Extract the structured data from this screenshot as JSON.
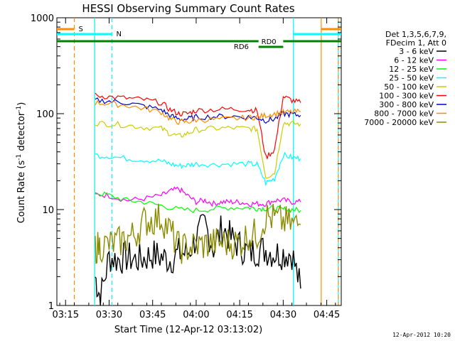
{
  "chart_data": {
    "type": "line",
    "title": "HESSI Observing Summary Count Rates",
    "xlabel": "Start Time (12-Apr-12 03:13:02)",
    "ylabel_main": "Count Rate (s",
    "ylabel_sup1": "-1",
    "ylabel_mid": " detector",
    "ylabel_sup2": "-1",
    "ylabel_end": ")",
    "y_scale": "log",
    "xlim_min": [
      3.2,
      4.8333
    ],
    "ylim": [
      1,
      1000
    ],
    "x_ticks": [
      {
        "value": 3.25,
        "label": "03:15"
      },
      {
        "value": 3.5,
        "label": "03:30"
      },
      {
        "value": 3.75,
        "label": "03:45"
      },
      {
        "value": 4.0,
        "label": "04:00"
      },
      {
        "value": 4.25,
        "label": "04:15"
      },
      {
        "value": 4.5,
        "label": "04:30"
      },
      {
        "value": 4.75,
        "label": "04:45"
      }
    ],
    "y_ticks": [
      {
        "value": 1,
        "label": "1"
      },
      {
        "value": 10,
        "label": "10"
      },
      {
        "value": 100,
        "label": "100"
      },
      {
        "value": 1000,
        "label": "1000"
      }
    ],
    "legend": {
      "placement": "right",
      "header": [
        "Det 1,3,5,6,7,9,",
        "FDecim 1, Att 0"
      ]
    },
    "flags": {
      "saa_label": "S",
      "night_label": "N",
      "rd6_label": "RD6",
      "rd0_label": "RD0"
    },
    "vertical_markers": [
      {
        "value": 3.4167,
        "color": "#ff8c00",
        "style": "solid"
      },
      {
        "value": 3.3,
        "color": "#ff8c00",
        "style": "dashed"
      },
      {
        "value": 3.4167,
        "color": "#00ffff",
        "style": "solid"
      },
      {
        "value": 3.5167,
        "color": "#00ffff",
        "style": "dashed"
      },
      {
        "value": 4.5583,
        "color": "#00ffff",
        "style": "solid"
      },
      {
        "value": 4.7183,
        "color": "#ff8c00",
        "style": "solid"
      },
      {
        "value": 4.8167,
        "color": "#00ffff",
        "style": "solid"
      },
      {
        "value": 4.8167,
        "color": "#ff8c00",
        "style": "dashed"
      }
    ],
    "series": [
      {
        "name": "3 - 6 keV",
        "color": "#000000",
        "x": [
          3.42,
          3.45,
          3.5,
          3.55,
          3.6,
          3.65,
          3.7,
          3.75,
          3.8,
          3.85,
          3.9,
          3.95,
          4.0,
          4.05,
          4.1,
          4.15,
          4.2,
          4.25,
          4.3,
          4.35,
          4.4,
          4.45,
          4.5,
          4.55,
          4.6
        ],
        "y": [
          2.0,
          1.2,
          3.2,
          3.0,
          3.2,
          3.0,
          3.1,
          3.4,
          3.2,
          3.0,
          3.5,
          3.5,
          5.0,
          7.0,
          4.0,
          6.5,
          5.0,
          4.2,
          3.5,
          3.8,
          3.8,
          3.5,
          3.5,
          3.5,
          1.5
        ]
      },
      {
        "name": "6 - 12 keV",
        "color": "#ff00ff",
        "x": [
          3.42,
          3.5,
          3.6,
          3.7,
          3.8,
          3.85,
          3.9,
          3.95,
          4.0,
          4.05,
          4.1,
          4.15,
          4.2,
          4.25,
          4.3,
          4.35,
          4.4,
          4.45,
          4.5,
          4.55,
          4.6
        ],
        "y": [
          14.5,
          14.0,
          12.5,
          13.0,
          14.0,
          15.5,
          16.5,
          14.0,
          12.0,
          12.5,
          11.5,
          12.0,
          12.0,
          12.0,
          11.5,
          11.5,
          11.5,
          12.5,
          12.5,
          12.0,
          12.0
        ]
      },
      {
        "name": "12 - 25 keV",
        "color": "#00ff00",
        "x": [
          3.42,
          3.5,
          3.6,
          3.7,
          3.8,
          3.9,
          4.0,
          4.1,
          4.2,
          4.3,
          4.35,
          4.4,
          4.45,
          4.5,
          4.55,
          4.6
        ],
        "y": [
          15.0,
          14.0,
          12.5,
          12.0,
          11.0,
          10.0,
          9.8,
          10.2,
          10.5,
          10.5,
          10.3,
          10.3,
          10.3,
          10.0,
          10.0,
          9.8
        ]
      },
      {
        "name": "25 - 50 keV",
        "color": "#00ffff",
        "x": [
          3.42,
          3.5,
          3.6,
          3.7,
          3.8,
          3.85,
          3.9,
          3.95,
          4.0,
          4.1,
          4.2,
          4.3,
          4.35,
          4.4,
          4.45,
          4.5,
          4.55,
          4.6
        ],
        "y": [
          37,
          36,
          34,
          33,
          32,
          30,
          28.5,
          29,
          30,
          29.5,
          30,
          30,
          29.5,
          19,
          21,
          37,
          35,
          34
        ]
      },
      {
        "name": "50 - 100 keV",
        "color": "#cccc00",
        "x": [
          3.42,
          3.5,
          3.6,
          3.7,
          3.8,
          3.85,
          3.9,
          3.95,
          4.0,
          4.1,
          4.2,
          4.3,
          4.35,
          4.4,
          4.45,
          4.5,
          4.55,
          4.6
        ],
        "y": [
          80,
          78,
          76,
          72,
          70,
          62,
          58,
          62,
          68,
          70,
          71,
          70,
          69,
          22,
          24,
          80,
          79,
          78
        ]
      },
      {
        "name": "100 - 300 keV",
        "color": "#ff0000",
        "x": [
          3.42,
          3.5,
          3.6,
          3.7,
          3.8,
          3.85,
          3.9,
          3.95,
          4.0,
          4.1,
          4.2,
          4.3,
          4.35,
          4.4,
          4.45,
          4.5,
          4.55,
          4.6
        ],
        "y": [
          155,
          150,
          145,
          140,
          130,
          110,
          100,
          100,
          108,
          110,
          112,
          110,
          108,
          35,
          42,
          150,
          138,
          130
        ]
      },
      {
        "name": "300 - 800 keV",
        "color": "#0000cc",
        "x": [
          3.42,
          3.5,
          3.6,
          3.7,
          3.8,
          3.85,
          3.9,
          3.95,
          4.0,
          4.1,
          4.2,
          4.3,
          4.35,
          4.4,
          4.45,
          4.5,
          4.55,
          4.6
        ],
        "y": [
          138,
          135,
          130,
          120,
          110,
          95,
          88,
          88,
          92,
          93,
          94,
          92,
          91,
          85,
          88,
          100,
          98,
          96
        ]
      },
      {
        "name": "800 - 7000 keV",
        "color": "#ff8c00",
        "x": [
          3.42,
          3.5,
          3.6,
          3.7,
          3.8,
          3.85,
          3.9,
          3.95,
          4.0,
          4.1,
          4.2,
          4.3,
          4.35,
          4.4,
          4.45,
          4.5,
          4.55,
          4.6
        ],
        "y": [
          130,
          127,
          122,
          113,
          104,
          88,
          82,
          82,
          86,
          87,
          88,
          91,
          92,
          96,
          100,
          103,
          104,
          105
        ]
      },
      {
        "name": "7000 - 20000 keV",
        "color": "#8b8b00",
        "x": [
          3.42,
          3.45,
          3.5,
          3.55,
          3.6,
          3.65,
          3.7,
          3.75,
          3.8,
          3.85,
          3.9,
          3.95,
          4.0,
          4.05,
          4.1,
          4.15,
          4.2,
          4.25,
          4.3,
          4.35,
          4.4,
          4.45,
          4.5,
          4.55,
          4.6
        ],
        "y": [
          4.0,
          4.2,
          4.3,
          4.5,
          5.0,
          5.5,
          7.5,
          7.8,
          8.2,
          6.0,
          4.0,
          4.0,
          4.2,
          4.3,
          4.5,
          4.5,
          4.5,
          4.5,
          5.5,
          5.5,
          8.5,
          8.0,
          7.5,
          7.0,
          7.0
        ]
      }
    ]
  },
  "footer": {
    "timestamp": "12-Apr-2012 10:20"
  }
}
